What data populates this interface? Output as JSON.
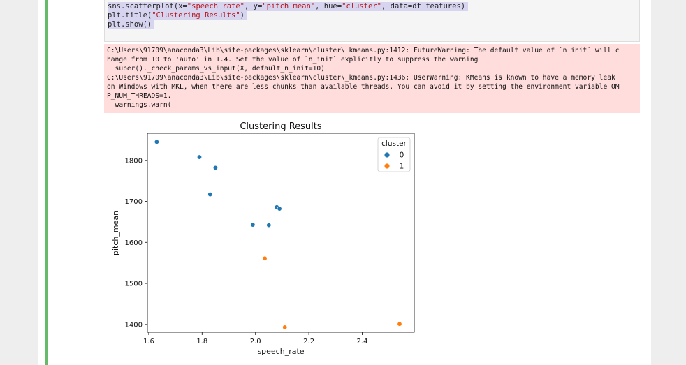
{
  "code": {
    "lines": [
      [
        [
          "sns.scatterplot(x=",
          ""
        ],
        [
          "\"speech_rate\"",
          "str"
        ],
        [
          ", y=",
          ""
        ],
        [
          "\"pitch_mean\"",
          "str"
        ],
        [
          ", hue=",
          ""
        ],
        [
          "\"cluster\"",
          "str"
        ],
        [
          ", data=df_features)",
          ""
        ]
      ],
      [
        [
          "plt.title(",
          ""
        ],
        [
          "\"Clustering Results\"",
          "str"
        ],
        [
          ")",
          ""
        ]
      ],
      [
        [
          "plt.show()",
          ""
        ]
      ]
    ]
  },
  "stderr": {
    "lines": [
      "C:\\Users\\91709\\anaconda3\\Lib\\site-packages\\sklearn\\cluster\\_kmeans.py:1412: FutureWarning: The default value of `n_init` will c",
      "hange from 10 to 'auto' in 1.4. Set the value of `n_init` explicitly to suppress the warning",
      "  super()._check_params_vs_input(X, default_n_init=10)",
      "C:\\Users\\91709\\anaconda3\\Lib\\site-packages\\sklearn\\cluster\\_kmeans.py:1436: UserWarning: KMeans is known to have a memory leak",
      "on Windows with MKL, when there are less chunks than available threads. You can avoid it by setting the environment variable OM",
      "P_NUM_THREADS=1.",
      "  warnings.warn("
    ]
  },
  "chart_data": {
    "type": "scatter",
    "title": "Clustering Results",
    "xlabel": "speech_rate",
    "ylabel": "pitch_mean",
    "xlim": [
      1.595,
      2.595
    ],
    "ylim": [
      1381,
      1866
    ],
    "xticks": [
      1.6,
      1.8,
      2.0,
      2.2,
      2.4
    ],
    "xtick_labels": [
      "1.6",
      "1.8",
      "2.0",
      "2.2",
      "2.4"
    ],
    "yticks": [
      1400,
      1500,
      1600,
      1700,
      1800
    ],
    "ytick_labels": [
      "1400",
      "1500",
      "1600",
      "1700",
      "1800"
    ],
    "grid": false,
    "legend": {
      "title": "cluster",
      "placement": "top-right"
    },
    "series": [
      {
        "name": "0",
        "color": "#1f77b4",
        "x": [
          1.63,
          1.79,
          1.85,
          1.83,
          2.08,
          2.09,
          1.99,
          2.05
        ],
        "y": [
          1845,
          1808,
          1782,
          1717,
          1686,
          1682,
          1643,
          1642
        ]
      },
      {
        "name": "1",
        "color": "#ff7f0e",
        "x": [
          2.035,
          2.11,
          2.54
        ],
        "y": [
          1561,
          1393,
          1401
        ]
      }
    ]
  }
}
